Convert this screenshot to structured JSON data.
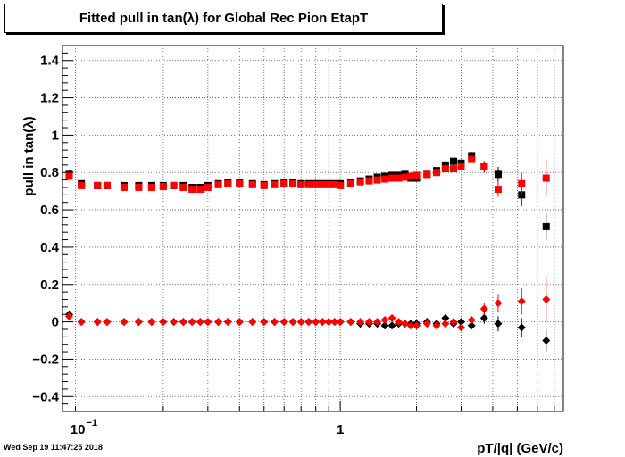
{
  "title": "Fitted pull in tan(λ) for Global Rec Pion EtapT",
  "timestamp": "Wed Sep 19 11:47:25 2018",
  "colors": {
    "series_black": "#000000",
    "series_red": "#ff0000",
    "grid": "#555555"
  },
  "chart_data": {
    "type": "scatter",
    "title": "Fitted pull in tan(λ) for Global Rec Pion EtapT",
    "xlabel": "pT/|q| (GeV/c)",
    "ylabel": "pull in tan(λ)",
    "x_scale": "log",
    "xlim": [
      0.08,
      7.6
    ],
    "ylim": [
      -0.48,
      1.48
    ],
    "grid": true,
    "x_major_ticks": [
      {
        "value": 0.1,
        "base": "10",
        "exp": "−1"
      },
      {
        "value": 1,
        "label": "1"
      }
    ],
    "y_ticks": [
      {
        "value": -0.4,
        "label": "−0.4"
      },
      {
        "value": -0.2,
        "label": "−0.2"
      },
      {
        "value": 0,
        "label": "0"
      },
      {
        "value": 0.2,
        "label": "0.2"
      },
      {
        "value": 0.4,
        "label": "0.4"
      },
      {
        "value": 0.6,
        "label": "0.6"
      },
      {
        "value": 0.8,
        "label": "0.8"
      },
      {
        "value": 1,
        "label": "1"
      },
      {
        "value": 1.2,
        "label": "1.2"
      },
      {
        "value": 1.4,
        "label": "1.4"
      }
    ],
    "series": [
      {
        "color": "#000000",
        "marker": "square",
        "points": [
          [
            0.085,
            0.79,
            0.02
          ],
          [
            0.095,
            0.74,
            0
          ],
          [
            0.11,
            0.73,
            0
          ],
          [
            0.12,
            0.73,
            0
          ],
          [
            0.14,
            0.73,
            0
          ],
          [
            0.16,
            0.73,
            0
          ],
          [
            0.18,
            0.73,
            0
          ],
          [
            0.2,
            0.73,
            0
          ],
          [
            0.22,
            0.73,
            0
          ],
          [
            0.24,
            0.73,
            0
          ],
          [
            0.26,
            0.72,
            0
          ],
          [
            0.28,
            0.72,
            0
          ],
          [
            0.3,
            0.73,
            0
          ],
          [
            0.33,
            0.74,
            0
          ],
          [
            0.36,
            0.745,
            0
          ],
          [
            0.4,
            0.745,
            0
          ],
          [
            0.45,
            0.74,
            0
          ],
          [
            0.5,
            0.735,
            0
          ],
          [
            0.55,
            0.74,
            0
          ],
          [
            0.6,
            0.745,
            0
          ],
          [
            0.65,
            0.745,
            0
          ],
          [
            0.7,
            0.74,
            0
          ],
          [
            0.75,
            0.74,
            0
          ],
          [
            0.8,
            0.74,
            0
          ],
          [
            0.85,
            0.74,
            0
          ],
          [
            0.9,
            0.74,
            0
          ],
          [
            0.95,
            0.74,
            0
          ],
          [
            1.0,
            0.74,
            0
          ],
          [
            1.1,
            0.745,
            0
          ],
          [
            1.2,
            0.755,
            0
          ],
          [
            1.3,
            0.765,
            0
          ],
          [
            1.4,
            0.775,
            0
          ],
          [
            1.5,
            0.78,
            0
          ],
          [
            1.6,
            0.785,
            0
          ],
          [
            1.7,
            0.785,
            0
          ],
          [
            1.8,
            0.79,
            0
          ],
          [
            1.9,
            0.77,
            0
          ],
          [
            2.0,
            0.77,
            0
          ],
          [
            2.2,
            0.79,
            0
          ],
          [
            2.4,
            0.81,
            0
          ],
          [
            2.6,
            0.84,
            0.02
          ],
          [
            2.8,
            0.86,
            0.02
          ],
          [
            3.0,
            0.85,
            0.02
          ],
          [
            3.3,
            0.89,
            0.02
          ],
          [
            3.7,
            0.83,
            0.03
          ],
          [
            4.2,
            0.79,
            0.04
          ],
          [
            5.2,
            0.68,
            0.06
          ],
          [
            6.5,
            0.51,
            0.07
          ]
        ]
      },
      {
        "color": "#ff0000",
        "marker": "square",
        "points": [
          [
            0.085,
            0.78,
            0.02
          ],
          [
            0.095,
            0.73,
            0
          ],
          [
            0.11,
            0.73,
            0
          ],
          [
            0.12,
            0.73,
            0
          ],
          [
            0.14,
            0.72,
            0
          ],
          [
            0.16,
            0.72,
            0
          ],
          [
            0.18,
            0.72,
            0
          ],
          [
            0.2,
            0.725,
            0
          ],
          [
            0.22,
            0.73,
            0
          ],
          [
            0.24,
            0.72,
            0
          ],
          [
            0.26,
            0.71,
            0
          ],
          [
            0.28,
            0.71,
            0
          ],
          [
            0.3,
            0.72,
            0
          ],
          [
            0.33,
            0.735,
            0
          ],
          [
            0.36,
            0.74,
            0
          ],
          [
            0.4,
            0.74,
            0
          ],
          [
            0.45,
            0.735,
            0
          ],
          [
            0.5,
            0.73,
            0
          ],
          [
            0.55,
            0.735,
            0
          ],
          [
            0.6,
            0.74,
            0
          ],
          [
            0.65,
            0.74,
            0
          ],
          [
            0.7,
            0.735,
            0
          ],
          [
            0.75,
            0.735,
            0
          ],
          [
            0.8,
            0.735,
            0
          ],
          [
            0.85,
            0.735,
            0
          ],
          [
            0.9,
            0.735,
            0
          ],
          [
            0.95,
            0.735,
            0
          ],
          [
            1.0,
            0.73,
            0
          ],
          [
            1.1,
            0.74,
            0
          ],
          [
            1.2,
            0.75,
            0
          ],
          [
            1.3,
            0.755,
            0
          ],
          [
            1.4,
            0.76,
            0
          ],
          [
            1.5,
            0.765,
            0
          ],
          [
            1.6,
            0.77,
            0
          ],
          [
            1.7,
            0.77,
            0
          ],
          [
            1.8,
            0.775,
            0
          ],
          [
            1.9,
            0.78,
            0
          ],
          [
            2.0,
            0.785,
            0
          ],
          [
            2.2,
            0.79,
            0
          ],
          [
            2.4,
            0.8,
            0
          ],
          [
            2.6,
            0.82,
            0.02
          ],
          [
            2.8,
            0.82,
            0.02
          ],
          [
            3.0,
            0.83,
            0.02
          ],
          [
            3.3,
            0.87,
            0.02
          ],
          [
            3.7,
            0.83,
            0.03
          ],
          [
            4.2,
            0.71,
            0.04
          ],
          [
            5.2,
            0.74,
            0.06
          ],
          [
            6.5,
            0.77,
            0.1
          ]
        ]
      },
      {
        "color": "#000000",
        "marker": "diamond",
        "points": [
          [
            0.085,
            0.04,
            0.02
          ],
          [
            0.095,
            0.0,
            0
          ],
          [
            0.11,
            0.0,
            0
          ],
          [
            0.12,
            0.0,
            0
          ],
          [
            0.14,
            0.0,
            0
          ],
          [
            0.16,
            0.0,
            0
          ],
          [
            0.18,
            0.0,
            0
          ],
          [
            0.2,
            0.0,
            0
          ],
          [
            0.22,
            0.0,
            0
          ],
          [
            0.24,
            0.0,
            0
          ],
          [
            0.26,
            0.0,
            0
          ],
          [
            0.28,
            0.0,
            0
          ],
          [
            0.3,
            0.0,
            0
          ],
          [
            0.33,
            0.0,
            0
          ],
          [
            0.36,
            0.0,
            0
          ],
          [
            0.4,
            0.0,
            0
          ],
          [
            0.45,
            0.0,
            0
          ],
          [
            0.5,
            0.0,
            0
          ],
          [
            0.55,
            0.0,
            0
          ],
          [
            0.6,
            0.0,
            0
          ],
          [
            0.65,
            0.0,
            0
          ],
          [
            0.7,
            0.0,
            0
          ],
          [
            0.75,
            0.0,
            0
          ],
          [
            0.8,
            0.0,
            0
          ],
          [
            0.85,
            0.0,
            0
          ],
          [
            0.9,
            0.0,
            0
          ],
          [
            0.95,
            0.0,
            0
          ],
          [
            1.0,
            0.0,
            0
          ],
          [
            1.1,
            0.0,
            0
          ],
          [
            1.2,
            -0.01,
            0
          ],
          [
            1.3,
            -0.01,
            0
          ],
          [
            1.4,
            -0.01,
            0
          ],
          [
            1.5,
            -0.02,
            0
          ],
          [
            1.6,
            -0.02,
            0
          ],
          [
            1.7,
            -0.01,
            0
          ],
          [
            1.8,
            -0.01,
            0
          ],
          [
            1.9,
            -0.01,
            0
          ],
          [
            2.0,
            -0.01,
            0
          ],
          [
            2.2,
            0.0,
            0
          ],
          [
            2.4,
            -0.01,
            0
          ],
          [
            2.6,
            0.02,
            0.02
          ],
          [
            2.8,
            -0.01,
            0.02
          ],
          [
            3.0,
            0.0,
            0.02
          ],
          [
            3.3,
            -0.02,
            0.02
          ],
          [
            3.7,
            0.02,
            0.03
          ],
          [
            4.2,
            -0.01,
            0.04
          ],
          [
            5.2,
            -0.03,
            0.05
          ],
          [
            6.5,
            -0.1,
            0.06
          ]
        ]
      },
      {
        "color": "#ff0000",
        "marker": "diamond",
        "points": [
          [
            0.085,
            0.03,
            0.02
          ],
          [
            0.095,
            0.0,
            0
          ],
          [
            0.11,
            0.0,
            0
          ],
          [
            0.12,
            0.0,
            0
          ],
          [
            0.14,
            0.0,
            0
          ],
          [
            0.16,
            0.0,
            0
          ],
          [
            0.18,
            0.0,
            0
          ],
          [
            0.2,
            0.0,
            0
          ],
          [
            0.22,
            0.0,
            0
          ],
          [
            0.24,
            0.0,
            0
          ],
          [
            0.26,
            0.0,
            0
          ],
          [
            0.28,
            0.0,
            0
          ],
          [
            0.3,
            0.0,
            0
          ],
          [
            0.33,
            0.0,
            0
          ],
          [
            0.36,
            0.0,
            0
          ],
          [
            0.4,
            0.0,
            0
          ],
          [
            0.45,
            0.0,
            0
          ],
          [
            0.5,
            0.0,
            0
          ],
          [
            0.55,
            0.0,
            0
          ],
          [
            0.6,
            0.0,
            0
          ],
          [
            0.65,
            0.0,
            0
          ],
          [
            0.7,
            0.0,
            0
          ],
          [
            0.75,
            0.0,
            0
          ],
          [
            0.8,
            0.0,
            0
          ],
          [
            0.85,
            0.0,
            0
          ],
          [
            0.9,
            0.0,
            0
          ],
          [
            0.95,
            0.0,
            0
          ],
          [
            1.0,
            0.0,
            0
          ],
          [
            1.1,
            0.0,
            0
          ],
          [
            1.2,
            0.0,
            0
          ],
          [
            1.3,
            0.0,
            0
          ],
          [
            1.4,
            0.0,
            0
          ],
          [
            1.5,
            0.01,
            0
          ],
          [
            1.6,
            0.02,
            0
          ],
          [
            1.7,
            0.0,
            0
          ],
          [
            1.8,
            -0.01,
            0
          ],
          [
            1.9,
            -0.02,
            0
          ],
          [
            2.0,
            -0.02,
            0
          ],
          [
            2.2,
            -0.01,
            0
          ],
          [
            2.4,
            -0.02,
            0
          ],
          [
            2.6,
            -0.01,
            0.02
          ],
          [
            2.8,
            0.0,
            0.02
          ],
          [
            3.0,
            -0.03,
            0.02
          ],
          [
            3.3,
            0.01,
            0.02
          ],
          [
            3.7,
            0.07,
            0.03
          ],
          [
            4.2,
            0.1,
            0.05
          ],
          [
            5.2,
            0.11,
            0.07
          ],
          [
            6.5,
            0.12,
            0.12
          ]
        ]
      }
    ]
  }
}
